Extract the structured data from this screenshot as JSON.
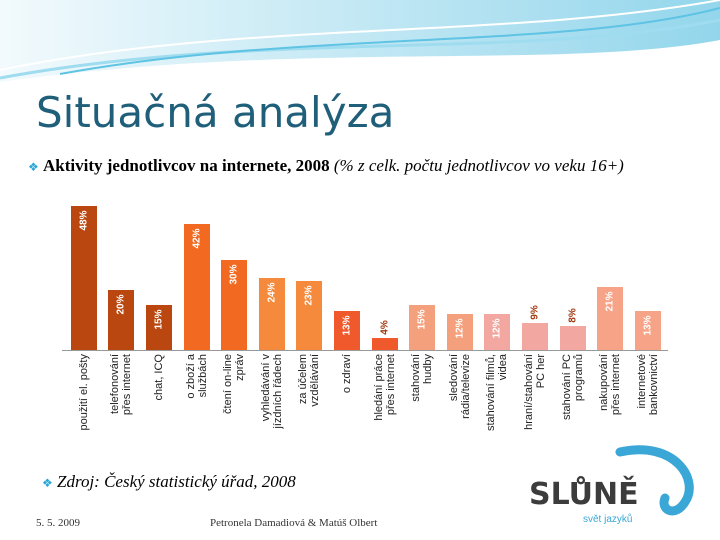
{
  "slide": {
    "title": "Situačná analýza",
    "bullet": "Aktivity jednotlivcov na internete, 2008",
    "bullet_note": "(% z celk. počtu jednotlivcov vo veku 16+)",
    "source": "Zdroj: Český statistický úřad, 2008",
    "date": "5. 5. 2009",
    "authors": "Petronela Damadiová & Matúš Olbert",
    "logo": "SLŮNĚ",
    "logo_tagline": "svět jazyků"
  },
  "chart_data": {
    "type": "bar",
    "categories": [
      "použití el. pošty",
      "telefonování\npřes internet",
      "chat, ICQ",
      "o zboží a\nslužbách",
      "čtení on-line\nzpráv",
      "vyhledávání v\njízdních řádech",
      "za účelem\nvzdělávání",
      "o zdraví",
      "hledání práce\npřes internet",
      "stahování\nhudby",
      "sledování\nrádia/televize",
      "stahování filmů,\nvidea",
      "hraní/stahování\nPC her",
      "stahování PC\nprogramů",
      "nakupování\npřes internet",
      "internetové\nbankovnictví"
    ],
    "values": [
      48,
      20,
      15,
      42,
      30,
      24,
      23,
      13,
      4,
      15,
      12,
      12,
      9,
      8,
      21,
      13
    ],
    "value_labels": [
      "48%",
      "20%",
      "15%",
      "42%",
      "30%",
      "24%",
      "23%",
      "13%",
      "4%",
      "15%",
      "12%",
      "12%",
      "9%",
      "8%",
      "21%",
      "13%"
    ],
    "colors": [
      "#b9470f",
      "#b9470f",
      "#b9470f",
      "#f26a22",
      "#f26a22",
      "#f58a3c",
      "#f58a3c",
      "#f0592b",
      "#f0592b",
      "#f5a07c",
      "#f5a07c",
      "#f2a8a0",
      "#f2a8a0",
      "#f2a8a0",
      "#f7a387",
      "#f7a387"
    ]
  }
}
